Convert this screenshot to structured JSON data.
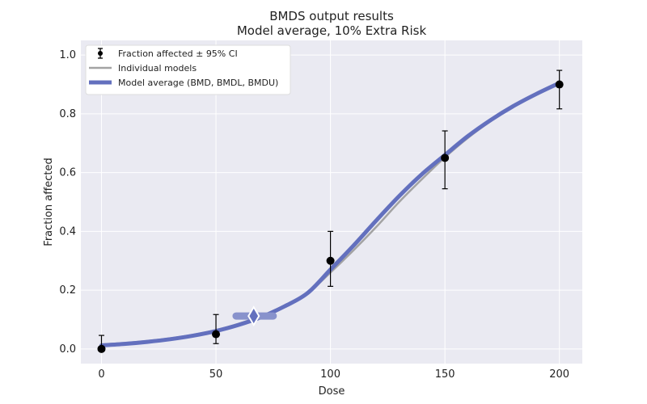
{
  "chart_data": {
    "type": "line",
    "title": "BMDS output results",
    "subtitle": "Model average, 10% Extra Risk",
    "xlabel": "Dose",
    "ylabel": "Fraction affected",
    "xlim": [
      -9,
      210
    ],
    "ylim": [
      -0.05,
      1.05
    ],
    "x_ticks": [
      0,
      50,
      100,
      150,
      200
    ],
    "y_ticks": [
      0.0,
      0.2,
      0.4,
      0.6,
      0.8,
      1.0
    ],
    "y_tick_labels": [
      "0.0",
      "0.2",
      "0.4",
      "0.6",
      "0.8",
      "1.0"
    ],
    "grid": true,
    "legend_position": "top-left",
    "observed": {
      "name": "Fraction affected ± 95% CI",
      "x": [
        0,
        50,
        100,
        150,
        200
      ],
      "y": [
        0.0,
        0.05,
        0.3,
        0.65,
        0.9
      ],
      "ci_lower": [
        -0.005,
        0.018,
        0.213,
        0.545,
        0.817
      ],
      "ci_upper": [
        0.046,
        0.117,
        0.4,
        0.742,
        0.948
      ]
    },
    "individual_models": {
      "name": "Individual models",
      "x": [
        0,
        10,
        20,
        30,
        40,
        50,
        60,
        70,
        80,
        90,
        100,
        110,
        120,
        130,
        140,
        150,
        160,
        170,
        180,
        190,
        200
      ],
      "y": [
        0.015,
        0.02,
        0.027,
        0.036,
        0.048,
        0.064,
        0.086,
        0.113,
        0.148,
        0.19,
        0.26,
        0.335,
        0.415,
        0.5,
        0.578,
        0.652,
        0.718,
        0.775,
        0.825,
        0.867,
        0.902
      ]
    },
    "model_average": {
      "name": "Model average (BMD, BMDL, BMDU)",
      "x": [
        0,
        10,
        20,
        30,
        40,
        50,
        60,
        70,
        80,
        90,
        100,
        110,
        120,
        130,
        140,
        150,
        160,
        170,
        180,
        190,
        200
      ],
      "y": [
        0.012,
        0.017,
        0.024,
        0.033,
        0.045,
        0.061,
        0.082,
        0.109,
        0.145,
        0.19,
        0.27,
        0.351,
        0.437,
        0.52,
        0.595,
        0.66,
        0.724,
        0.779,
        0.827,
        0.868,
        0.905
      ]
    },
    "bmd": {
      "bmd": 66.5,
      "bmdl": 58.8,
      "bmdu": 75.0,
      "response": 0.112
    },
    "colors": {
      "observed": "#000000",
      "individual_models": "#a3a3a3",
      "model_average": "#6370be",
      "bmd_range": "#8892cc",
      "background": "#eaeaf2",
      "grid": "#ffffff"
    }
  }
}
